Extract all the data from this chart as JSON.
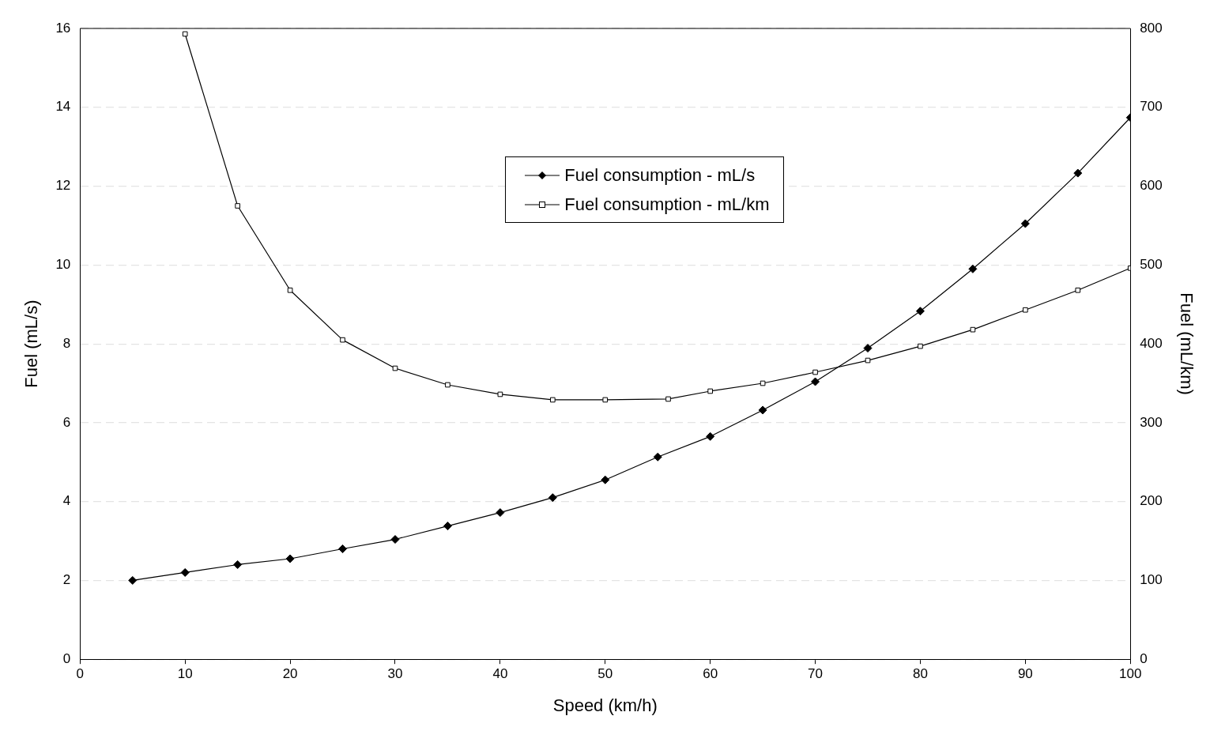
{
  "chart_data": {
    "type": "line",
    "xlabel": "Speed (km/h)",
    "ylabel": "Fuel (mL/s)",
    "y2label": "Fuel (mL/km)",
    "xlim": [
      0,
      100
    ],
    "xticks": [
      0,
      10,
      20,
      30,
      40,
      50,
      60,
      70,
      80,
      90,
      100
    ],
    "ylim": [
      0,
      16
    ],
    "yticks": [
      0,
      2,
      4,
      6,
      8,
      10,
      12,
      14,
      16
    ],
    "y2lim": [
      0,
      800
    ],
    "y2ticks": [
      0,
      100,
      200,
      300,
      400,
      500,
      600,
      700,
      800
    ],
    "grid": "y",
    "legend": "top",
    "series": [
      {
        "name": "Fuel consumption - mL/s",
        "color": "#000000",
        "marker": "diamond",
        "x": [
          5,
          10,
          15,
          20,
          25,
          30,
          35,
          40,
          45,
          50,
          55,
          60,
          65,
          70,
          75,
          80,
          85,
          90,
          95,
          100
        ],
        "values": [
          2.0,
          2.2,
          2.4,
          2.55,
          2.8,
          3.04,
          3.38,
          3.72,
          4.1,
          4.55,
          5.13,
          5.65,
          6.32,
          7.04,
          7.89,
          8.83,
          9.9,
          11.05,
          12.33,
          13.74
        ]
      },
      {
        "name": "Fuel consumption - mL/km",
        "color": "#000000",
        "marker": "square",
        "axis": "y2",
        "x": [
          10,
          15,
          20,
          25,
          30,
          35,
          40,
          45,
          50,
          56,
          60,
          65,
          70,
          75,
          80,
          85,
          90,
          95,
          100
        ],
        "values": [
          793,
          575,
          468,
          405,
          369,
          348,
          336,
          329,
          329,
          330,
          340,
          350,
          364,
          379,
          397,
          418,
          443,
          468,
          496
        ]
      }
    ]
  }
}
